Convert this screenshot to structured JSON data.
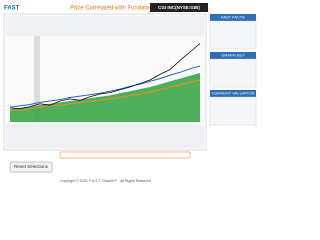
{
  "header": {
    "logo": "FAST",
    "title": "Price Correlated with Fundamentals",
    "ticker": "CGI INC(NYSE:GIB)"
  },
  "chart": {
    "ylim": [
      0,
      120
    ],
    "series": [
      {
        "color": "#3aa64a",
        "values": [
          18,
          20,
          22,
          24,
          26,
          28,
          30,
          32,
          34,
          36,
          38,
          41,
          44,
          47,
          50,
          54,
          58,
          62,
          66,
          70
        ]
      },
      {
        "color": "#2d5fc4",
        "values": [
          21,
          23,
          25,
          28,
          30,
          32,
          35,
          37,
          39,
          41,
          44,
          47,
          51,
          54,
          58,
          62,
          67,
          71,
          76,
          80
        ]
      },
      {
        "color": "#f08a1e",
        "values": [
          16,
          17,
          19,
          21,
          23,
          24,
          26,
          28,
          29,
          31,
          33,
          35,
          38,
          40,
          43,
          46,
          50,
          53,
          57,
          60
        ]
      },
      {
        "color": "#111111",
        "values": [
          20,
          19,
          22,
          26,
          24,
          30,
          33,
          31,
          36,
          40,
          42,
          46,
          50,
          55,
          60,
          68,
          75,
          88,
          100,
          112
        ]
      }
    ]
  },
  "button": "Reset Selections",
  "sidebar": [
    "FAST FACTS",
    "GRAPH KEY",
    "CURRENT VALUATION"
  ],
  "footer": "Copyright © 2020, F.A.S.T. Graphs™ - All Rights Reserved"
}
